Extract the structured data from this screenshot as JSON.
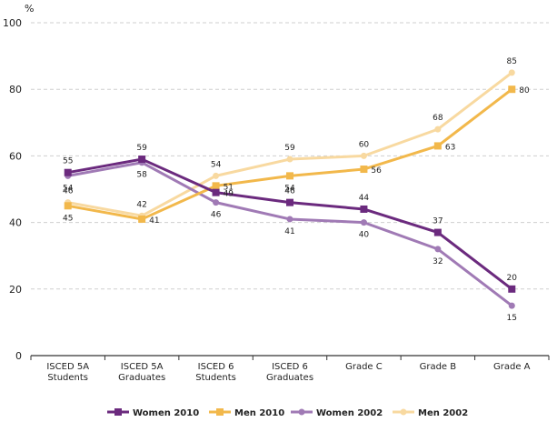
{
  "chart_data": {
    "type": "line",
    "ylabel": "%",
    "ylim": [
      0,
      100
    ],
    "yticks": [
      0,
      20,
      40,
      60,
      80,
      100
    ],
    "grid": "horizontal dashed",
    "legend_position": "bottom",
    "categories": [
      "ISCED 5A\nStudents",
      "ISCED 5A\nGraduates",
      "ISCED 6\nStudents",
      "ISCED 6\nGraduates",
      "Grade C",
      "Grade B",
      "Grade A"
    ],
    "series": [
      {
        "name": "Women 2010",
        "color": "#6b2a7e",
        "marker": "square",
        "values": [
          55,
          59,
          49,
          46,
          44,
          37,
          20
        ],
        "label_side": [
          "above",
          "above",
          "right",
          "above",
          "above",
          "above",
          "above"
        ]
      },
      {
        "name": "Men 2010",
        "color": "#f2b84b",
        "marker": "square",
        "values": [
          45,
          41,
          51,
          54,
          56,
          63,
          80
        ],
        "label_side": [
          "below",
          "right",
          "right",
          "below",
          "right",
          "right",
          "right"
        ]
      },
      {
        "name": "Women 2002",
        "color": "#a07ab5",
        "marker": "circle",
        "values": [
          54,
          58,
          46,
          41,
          40,
          32,
          15
        ],
        "label_side": [
          "below",
          "below",
          "below",
          "below",
          "below",
          "below",
          "below"
        ]
      },
      {
        "name": "Men 2002",
        "color": "#f8d9a0",
        "marker": "circle",
        "values": [
          46,
          42,
          54,
          59,
          60,
          68,
          85
        ],
        "label_side": [
          "above",
          "above",
          "above",
          "above",
          "above",
          "above",
          "above"
        ]
      }
    ]
  }
}
